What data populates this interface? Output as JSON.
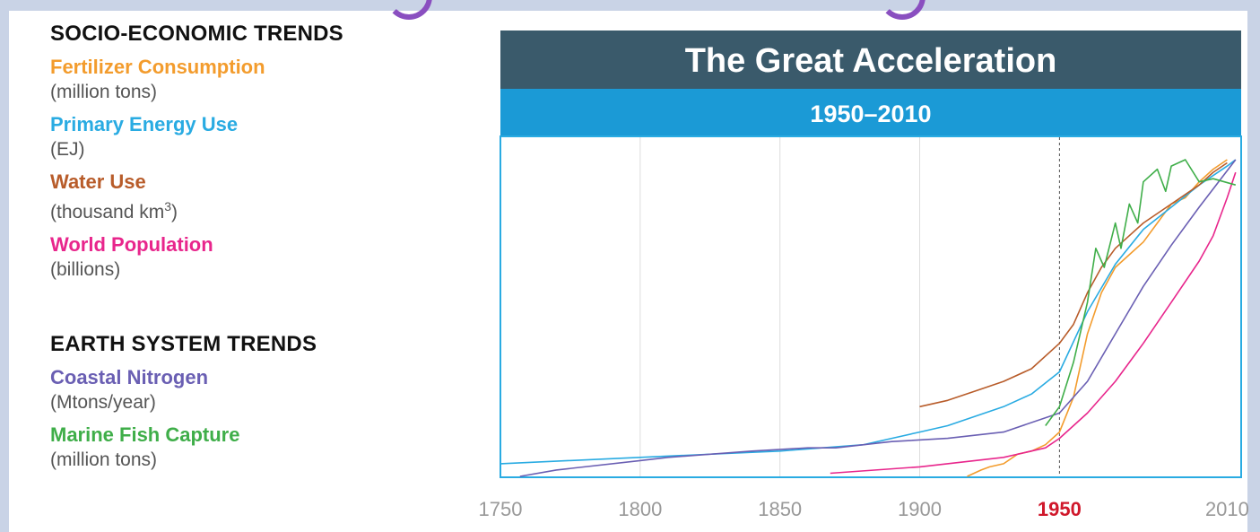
{
  "legend": {
    "socio_heading": "SOCIO-ECONOMIC TRENDS",
    "earth_heading": "EARTH SYSTEM TRENDS",
    "socio_items": [
      {
        "name": "Fertilizer Consumption",
        "unit": "(million tons)",
        "color": "#f39c2d"
      },
      {
        "name": "Primary Energy Use",
        "unit": "(EJ)",
        "color": "#29abe2"
      },
      {
        "name": "Water Use",
        "unit": "(thousand km",
        "unit_sup": "3",
        "unit_end": ")",
        "color": "#b85c2a"
      },
      {
        "name": "World Population",
        "unit": "(billions)",
        "color": "#e8268c"
      }
    ],
    "earth_items": [
      {
        "name": "Coastal Nitrogen",
        "unit": "(Mtons/year)",
        "color": "#6a5fb3"
      },
      {
        "name": "Marine Fish Capture",
        "unit": "(million tons)",
        "color": "#3fae49"
      }
    ]
  },
  "chart_data": {
    "type": "line",
    "title": "The Great Acceleration",
    "subtitle": "1950–2010",
    "title_bg": "#3a5a6b",
    "subtitle_bg": "#1b9ad6",
    "x_ticks": [
      "1750",
      "1800",
      "1850",
      "1900",
      "1950",
      "2010"
    ],
    "x_tick_values": [
      1750,
      1800,
      1850,
      1900,
      1950,
      2010
    ],
    "highlight_tick": "1950",
    "highlight_color": "#d0182b",
    "xlim": [
      1750,
      2015
    ],
    "ylim": [
      0,
      1
    ],
    "marker_year": 1950,
    "grid": true,
    "series": [
      {
        "name": "Fertilizer Consumption",
        "color": "#f39c2d",
        "x": [
          1917,
          1922,
          1925,
          1930,
          1935,
          1940,
          1945,
          1950,
          1955,
          1960,
          1965,
          1970,
          1975,
          1980,
          1985,
          1990,
          1995,
          2000,
          2005,
          2010
        ],
        "y": [
          0.0,
          0.02,
          0.03,
          0.04,
          0.07,
          0.08,
          0.1,
          0.14,
          0.25,
          0.45,
          0.58,
          0.66,
          0.7,
          0.74,
          0.8,
          0.86,
          0.88,
          0.93,
          0.97,
          1.0
        ]
      },
      {
        "name": "Primary Energy Use",
        "color": "#29abe2",
        "x": [
          1750,
          1800,
          1850,
          1880,
          1890,
          1900,
          1910,
          1920,
          1930,
          1940,
          1950,
          1960,
          1970,
          1980,
          1990,
          2000,
          2010,
          2013
        ],
        "y": [
          0.04,
          0.06,
          0.08,
          0.1,
          0.12,
          0.14,
          0.16,
          0.19,
          0.22,
          0.26,
          0.33,
          0.52,
          0.67,
          0.78,
          0.85,
          0.92,
          0.98,
          1.0
        ]
      },
      {
        "name": "Water Use",
        "color": "#b85c2a",
        "x": [
          1900,
          1910,
          1920,
          1930,
          1940,
          1950,
          1955,
          1960,
          1965,
          1970,
          1975,
          1980,
          1990,
          2000,
          2005,
          2010
        ],
        "y": [
          0.22,
          0.24,
          0.27,
          0.3,
          0.34,
          0.42,
          0.48,
          0.58,
          0.66,
          0.72,
          0.76,
          0.8,
          0.86,
          0.92,
          0.96,
          0.99
        ]
      },
      {
        "name": "World Population",
        "color": "#e8268c",
        "x": [
          1868,
          1900,
          1930,
          1945,
          1950,
          1960,
          1970,
          1980,
          1990,
          2000,
          2005,
          2010,
          2013
        ],
        "y": [
          0.01,
          0.03,
          0.06,
          0.09,
          0.12,
          0.2,
          0.3,
          0.42,
          0.55,
          0.68,
          0.76,
          0.88,
          0.96
        ]
      },
      {
        "name": "Coastal Nitrogen",
        "color": "#6a5fb3",
        "x": [
          1757,
          1770,
          1800,
          1810,
          1840,
          1860,
          1870,
          1880,
          1890,
          1910,
          1930,
          1950,
          1960,
          1970,
          1980,
          1990,
          2000,
          2013
        ],
        "y": [
          0.0,
          0.02,
          0.05,
          0.06,
          0.08,
          0.09,
          0.09,
          0.1,
          0.11,
          0.12,
          0.14,
          0.2,
          0.3,
          0.45,
          0.6,
          0.73,
          0.85,
          1.0
        ]
      },
      {
        "name": "Marine Fish Capture",
        "color": "#3fae49",
        "x": [
          1945,
          1950,
          1955,
          1960,
          1963,
          1966,
          1970,
          1972,
          1975,
          1978,
          1980,
          1985,
          1988,
          1990,
          1995,
          2000,
          2005,
          2013
        ],
        "y": [
          0.16,
          0.22,
          0.36,
          0.55,
          0.72,
          0.66,
          0.8,
          0.72,
          0.86,
          0.8,
          0.93,
          0.97,
          0.9,
          0.98,
          1.0,
          0.93,
          0.94,
          0.92
        ]
      }
    ]
  }
}
